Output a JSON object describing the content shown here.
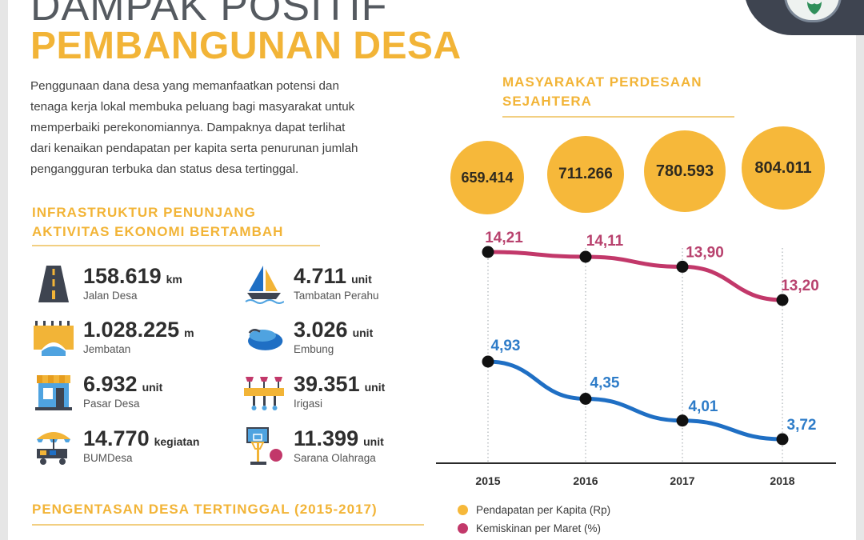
{
  "header": {
    "title_top": "DAMPAK POSITIF",
    "title_main": "PEMBANGUNAN DESA"
  },
  "intro": {
    "lines": [
      "Penggunaan dana desa yang memanfaatkan potensi dan",
      "tenaga kerja lokal membuka peluang bagi masyarakat untuk",
      "memperbaiki perekonomiannya. Dampaknya dapat terlihat",
      "dari kenaikan pendapatan per kapita serta penurunan jumlah",
      "pengangguran terbuka dan status desa tertinggal."
    ]
  },
  "infra": {
    "heading_line1": "INFRASTRUKTUR PENUNJANG",
    "heading_line2": "AKTIVITAS EKONOMI BERTAMBAH",
    "items": [
      {
        "value": "158.619",
        "unit": "km",
        "label": "Jalan Desa",
        "icon": "road-icon"
      },
      {
        "value": "4.711",
        "unit": "unit",
        "label": "Tambatan Perahu",
        "icon": "sailboat-icon"
      },
      {
        "value": "1.028.225",
        "unit": "m",
        "label": "Jembatan",
        "icon": "bridge-icon"
      },
      {
        "value": "3.026",
        "unit": "unit",
        "label": "Embung",
        "icon": "pond-icon"
      },
      {
        "value": "6.932",
        "unit": "unit",
        "label": "Pasar Desa",
        "icon": "market-icon"
      },
      {
        "value": "39.351",
        "unit": "unit",
        "label": "Irigasi",
        "icon": "irrigation-icon"
      },
      {
        "value": "14.770",
        "unit": "kegiatan",
        "label": "BUMDesa",
        "icon": "cart-icon"
      },
      {
        "value": "11.399",
        "unit": "unit",
        "label": "Sarana Olahraga",
        "icon": "basketball-icon"
      }
    ]
  },
  "pengentasan": {
    "heading": "PENGENTASAN DESA TERTINGGAL (2015-2017)"
  },
  "sejahtera": {
    "heading_line1": "MASYARAKAT PERDESAAN",
    "heading_line2": "SEJAHTERA"
  },
  "colors": {
    "accent": "#f2b437",
    "bubble": "#f6b83a",
    "poverty": "#c2386a",
    "poverty_label": "#b8426e",
    "unemployment": "#1f6fc4",
    "unemployment_label": "#2e7cc8",
    "dark": "#3e4450"
  },
  "chart_data": {
    "type": "line",
    "x": [
      "2015",
      "2016",
      "2017",
      "2018"
    ],
    "bubbles": [
      "659.414",
      "711.266",
      "780.593",
      "804.011"
    ],
    "series": [
      {
        "name": "Pendapatan per Kapita (Rp)",
        "values": [
          659414,
          711266,
          780593,
          804011
        ],
        "display": "bubbles"
      },
      {
        "name": "Kemiskinan per Maret (%)",
        "values": [
          14.21,
          14.11,
          13.9,
          13.2
        ],
        "labels": [
          "14,21",
          "14,11",
          "13,90",
          "13,20"
        ]
      },
      {
        "name": "",
        "values": [
          4.93,
          4.35,
          4.01,
          3.72
        ],
        "labels": [
          "4,93",
          "4,35",
          "4,01",
          "3,72"
        ]
      }
    ],
    "grid": "vertical dotted lines at each year",
    "legend": "bottom"
  }
}
